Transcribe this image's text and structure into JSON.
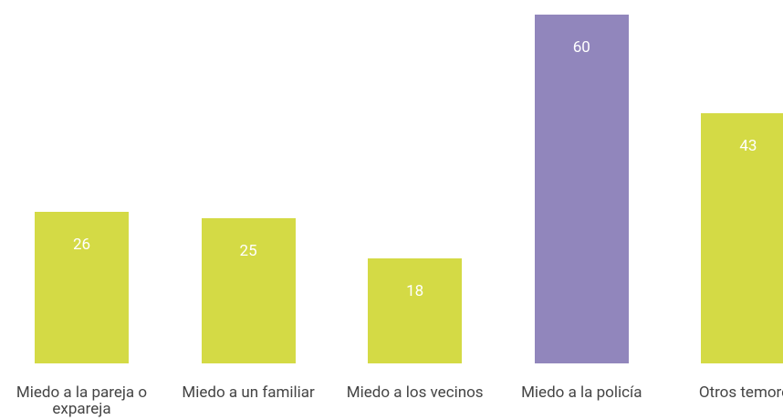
{
  "chart_data": {
    "type": "bar",
    "categories": [
      "Miedo a la pareja o expareja",
      "Miedo a un familiar",
      "Miedo a los vecinos",
      "Miedo a la policía",
      "Otros temores"
    ],
    "values": [
      26,
      25,
      18,
      60,
      43
    ],
    "colors": [
      "#d4da45",
      "#d4da45",
      "#d4da45",
      "#9186bc",
      "#d4da45"
    ]
  }
}
